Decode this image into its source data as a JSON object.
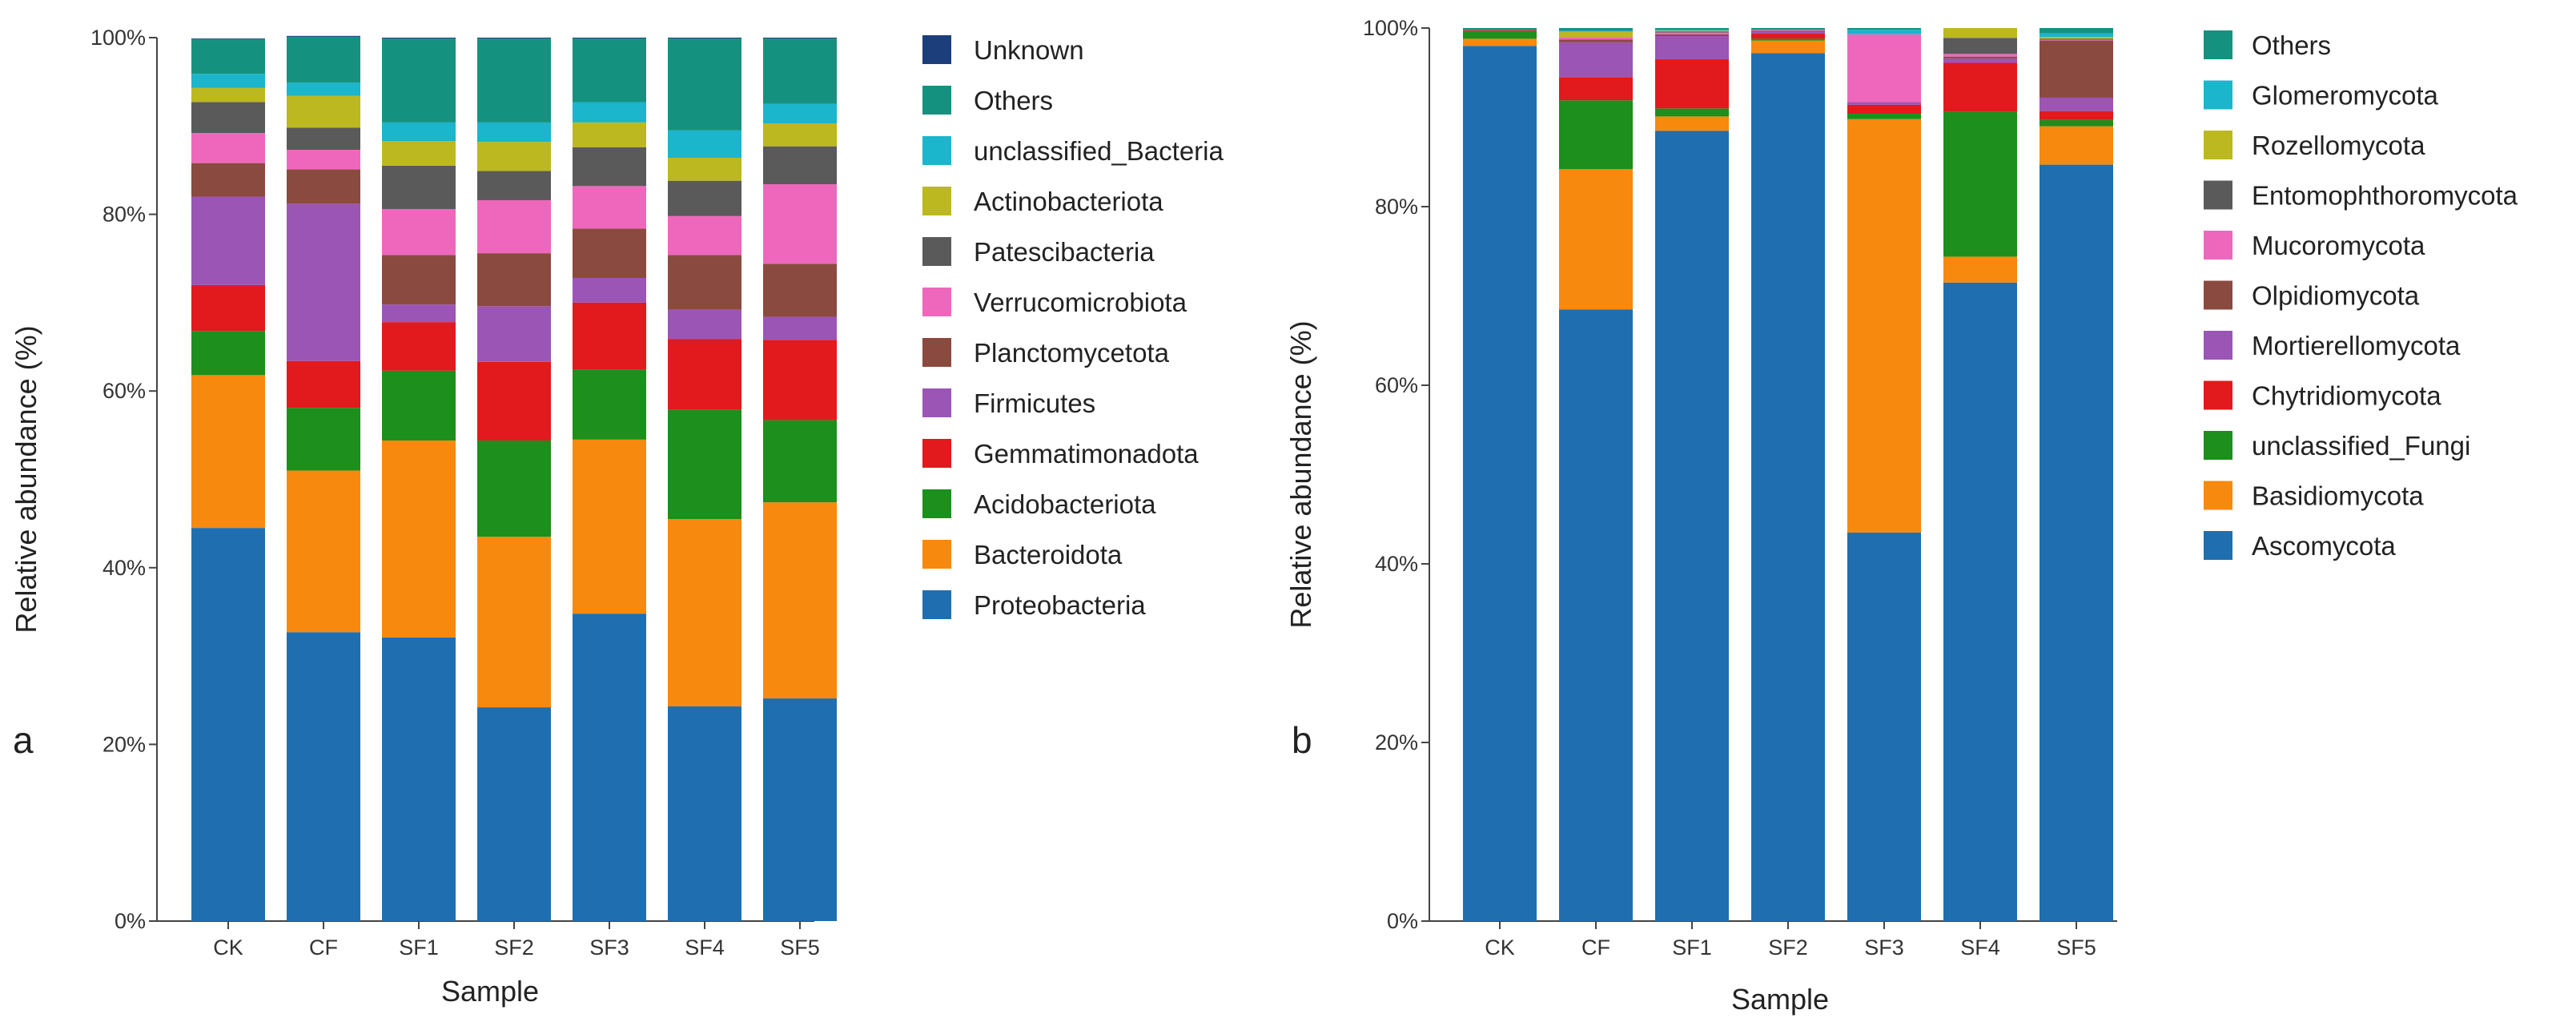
{
  "chart_data": [
    {
      "type": "bar",
      "stacked": true,
      "panel_label": "a",
      "xlabel": "Sample",
      "ylabel": "Relative abundance (%)",
      "ylim": [
        0,
        100
      ],
      "ytick_labels": [
        "0%",
        "20%",
        "40%",
        "60%",
        "80%",
        "100%"
      ],
      "categories": [
        "CK",
        "CF",
        "SF1",
        "SF2",
        "SF3",
        "SF4",
        "SF5"
      ],
      "legend_position": "right",
      "series": [
        {
          "name": "Proteobacteria",
          "color": "#1f6fb0",
          "values": [
            44.5,
            32.7,
            32.1,
            24.2,
            34.8,
            24.3,
            25.2
          ]
        },
        {
          "name": "Bacteroidota",
          "color": "#f7890f",
          "values": [
            17.3,
            18.3,
            22.3,
            19.3,
            19.7,
            21.2,
            22.2
          ]
        },
        {
          "name": "Acidobacteriota",
          "color": "#1c8f1c",
          "values": [
            5.0,
            7.1,
            7.9,
            10.9,
            7.9,
            12.4,
            9.3
          ]
        },
        {
          "name": "Gemmatimonadota",
          "color": "#e2191d",
          "values": [
            5.2,
            5.3,
            5.5,
            8.9,
            7.6,
            8.0,
            9.1
          ]
        },
        {
          "name": "Firmicutes",
          "color": "#9b55b5",
          "values": [
            10.0,
            17.8,
            2.0,
            6.3,
            2.8,
            3.3,
            2.6
          ]
        },
        {
          "name": "Planctomycetota",
          "color": "#8b4a3f",
          "values": [
            3.8,
            3.9,
            5.6,
            6.0,
            5.6,
            6.2,
            6.0
          ]
        },
        {
          "name": "Verrucomicrobiota",
          "color": "#ef67bd",
          "values": [
            3.4,
            2.2,
            5.2,
            6.0,
            4.8,
            4.4,
            9.0
          ]
        },
        {
          "name": "Patescibacteria",
          "color": "#5a5a5a",
          "values": [
            3.5,
            2.5,
            4.9,
            3.3,
            4.4,
            4.0,
            4.3
          ]
        },
        {
          "name": "Actinobacteriota",
          "color": "#bcb81f",
          "values": [
            1.6,
            3.6,
            2.8,
            3.3,
            2.8,
            2.6,
            2.6
          ]
        },
        {
          "name": "unclassified_Bacteria",
          "color": "#1bb5cc",
          "values": [
            1.6,
            1.5,
            2.1,
            2.2,
            2.3,
            3.1,
            2.2
          ]
        },
        {
          "name": "Others",
          "color": "#14927f",
          "values": [
            3.9,
            5.2,
            9.5,
            9.5,
            7.2,
            10.4,
            7.4
          ]
        },
        {
          "name": "Unknown",
          "color": "#1c3f7c",
          "values": [
            0.1,
            0.1,
            0.1,
            0.1,
            0.1,
            0.1,
            0.1
          ]
        }
      ]
    },
    {
      "type": "bar",
      "stacked": true,
      "panel_label": "b",
      "xlabel": "Sample",
      "ylabel": "Relative abundance (%)",
      "ylim": [
        0,
        100
      ],
      "ytick_labels": [
        "0%",
        "20%",
        "40%",
        "60%",
        "80%",
        "100%"
      ],
      "categories": [
        "CK",
        "CF",
        "SF1",
        "SF2",
        "SF3",
        "SF4",
        "SF5"
      ],
      "legend_position": "right",
      "series": [
        {
          "name": "Ascomycota",
          "color": "#1f6fb0",
          "values": [
            98.0,
            68.5,
            88.5,
            97.2,
            43.5,
            71.5,
            84.7
          ]
        },
        {
          "name": "Basidiomycota",
          "color": "#f7890f",
          "values": [
            0.8,
            15.7,
            1.6,
            1.4,
            46.3,
            2.9,
            4.3
          ]
        },
        {
          "name": "unclassified_Fungi",
          "color": "#1c8f1c",
          "values": [
            0.8,
            7.7,
            0.9,
            0.2,
            0.6,
            16.2,
            0.7
          ]
        },
        {
          "name": "Chytridiomycota",
          "color": "#e2191d",
          "values": [
            0.1,
            2.6,
            5.5,
            0.6,
            1.0,
            5.5,
            1.0
          ]
        },
        {
          "name": "Mortierellomycota",
          "color": "#9b55b5",
          "values": [
            0.0,
            3.9,
            2.6,
            0.2,
            0.3,
            0.5,
            1.5
          ]
        },
        {
          "name": "Olpidiomycota",
          "color": "#8b4a3f",
          "values": [
            0.1,
            0.3,
            0.2,
            0.1,
            0.0,
            0.2,
            6.4
          ]
        },
        {
          "name": "Mucoromycota",
          "color": "#ef67bd",
          "values": [
            0.0,
            0.3,
            0.2,
            0.1,
            7.6,
            0.3,
            0.1
          ]
        },
        {
          "name": "Entomophthoromycota",
          "color": "#5a5a5a",
          "values": [
            0.0,
            0.0,
            0.1,
            0.0,
            0.0,
            1.8,
            0.1
          ]
        },
        {
          "name": "Rozellomycota",
          "color": "#bcb81f",
          "values": [
            0.0,
            0.6,
            0.1,
            0.0,
            0.0,
            1.1,
            0.2
          ]
        },
        {
          "name": "Glomeromycota",
          "color": "#1bb5cc",
          "values": [
            0.0,
            0.1,
            0.1,
            0.0,
            0.5,
            0.0,
            0.4
          ]
        },
        {
          "name": "Others",
          "color": "#14927f",
          "values": [
            0.2,
            0.3,
            0.2,
            0.2,
            0.2,
            0.0,
            0.6
          ]
        }
      ]
    }
  ]
}
